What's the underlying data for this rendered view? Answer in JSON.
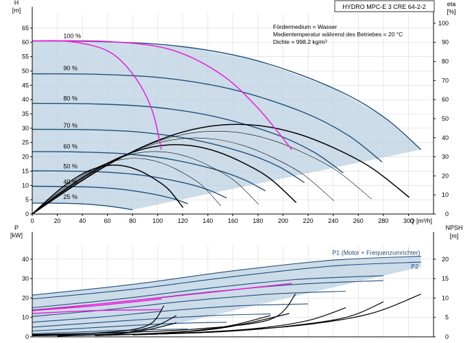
{
  "chart_data": [
    {
      "type": "line",
      "title": "HYDRO MPC-E 3 CRE 64-2-2",
      "ylabel_left": "H",
      "ylabel_left_unit": "[m]",
      "ylabel_right": "eta",
      "ylabel_right_unit": "[%]",
      "xlabel": "Q [m³/h]",
      "xlim": [
        0,
        320
      ],
      "ylim_left": [
        0,
        70
      ],
      "ylim_right": [
        0,
        105
      ],
      "x_ticks": [
        0,
        20,
        40,
        60,
        80,
        100,
        120,
        140,
        160,
        180,
        200,
        220,
        240,
        260,
        280,
        300
      ],
      "y_ticks_left": [
        0,
        5,
        10,
        15,
        20,
        25,
        30,
        35,
        40,
        45,
        50,
        55,
        60,
        65
      ],
      "y_ticks_right": [
        0,
        10,
        20,
        30,
        40,
        50,
        60,
        70,
        80,
        90,
        100
      ],
      "grid": true,
      "annotations": [
        "Fördermedium = Wasser",
        "Medientemperatur während des Betriebes = 20 °C",
        "Dichte = 998.2 kg/m³"
      ],
      "speed_curves": [
        {
          "name": "100 %",
          "label_at": [
            15,
            60.8
          ],
          "x": [
            0,
            60,
            120,
            180,
            240,
            280,
            310
          ],
          "y": [
            60.5,
            60.2,
            58.5,
            53.5,
            44.0,
            34.0,
            22.5
          ]
        },
        {
          "name": "90 %",
          "label_at": [
            15,
            49.5
          ],
          "x": [
            0,
            54,
            108,
            162,
            216,
            252,
            279
          ],
          "y": [
            49.0,
            48.8,
            47.4,
            43.3,
            35.6,
            27.5,
            18.2
          ]
        },
        {
          "name": "80 %",
          "label_at": [
            15,
            39
          ],
          "x": [
            0,
            48,
            96,
            144,
            192,
            224,
            248
          ],
          "y": [
            38.7,
            38.5,
            37.4,
            34.2,
            28.2,
            21.8,
            14.4
          ]
        },
        {
          "name": "70 %",
          "label_at": [
            15,
            29.5
          ],
          "x": [
            0,
            42,
            84,
            126,
            168,
            196,
            217
          ],
          "y": [
            29.6,
            29.5,
            28.7,
            26.2,
            21.6,
            16.7,
            11.0
          ]
        },
        {
          "name": "60 %",
          "label_at": [
            15,
            22.2
          ],
          "x": [
            0,
            36,
            72,
            108,
            144,
            168,
            186
          ],
          "y": [
            21.8,
            21.7,
            21.1,
            19.3,
            15.8,
            12.2,
            8.1
          ]
        },
        {
          "name": "50 %",
          "label_at": [
            15,
            15.2
          ],
          "x": [
            0,
            30,
            60,
            90,
            120,
            140,
            155
          ],
          "y": [
            15.1,
            15.0,
            14.6,
            13.4,
            11.0,
            8.5,
            5.6
          ]
        },
        {
          "name": "40 %",
          "label_at": [
            15,
            9.8
          ],
          "x": [
            0,
            24,
            48,
            72,
            96,
            112,
            124
          ],
          "y": [
            9.7,
            9.6,
            9.4,
            8.6,
            7.0,
            5.4,
            3.6
          ]
        },
        {
          "name": "25 %",
          "label_at": [
            15,
            4.5
          ],
          "x": [
            0,
            15,
            30,
            45,
            60,
            70,
            80
          ],
          "y": [
            3.8,
            3.8,
            3.7,
            3.4,
            2.8,
            2.2,
            1.5
          ]
        }
      ],
      "best_curve_1pump": {
        "x": [
          0,
          30,
          60,
          80,
          95,
          103
        ],
        "y": [
          60.5,
          60.3,
          57.0,
          49.0,
          37.0,
          22.5
        ]
      },
      "best_curve_2pump": {
        "x": [
          0,
          60,
          110,
          150,
          180,
          207
        ],
        "y": [
          60.5,
          60.3,
          57.5,
          49.0,
          37.0,
          22.5
        ]
      }
    },
    {
      "type": "line",
      "ylabel_left": "P",
      "ylabel_left_unit": "[kW]",
      "ylabel_right": "NPSH",
      "ylabel_right_unit": "[m]",
      "xlim": [
        0,
        320
      ],
      "ylim_left": [
        0,
        47
      ],
      "ylim_right": [
        0,
        23.5
      ],
      "y_ticks_left": [
        0,
        10,
        20,
        30,
        40
      ],
      "y_ticks_right": [
        0,
        5,
        10,
        15,
        20
      ],
      "grid": true,
      "series_labels": [
        {
          "name": "P1 (Motor + Frequenzumrichter)",
          "at": [
            220,
            41.5
          ]
        },
        {
          "name": "P2",
          "at": [
            302,
            34.5
          ]
        }
      ],
      "power_curves": [
        {
          "x": [
            0,
            80,
            160,
            240,
            310
          ],
          "y": [
            21.5,
            27.0,
            34.0,
            39.5,
            41.5
          ]
        },
        {
          "x": [
            0,
            80,
            160,
            240,
            310
          ],
          "y": [
            19.5,
            24.5,
            31.0,
            36.5,
            38.5
          ]
        },
        {
          "x": [
            0,
            70,
            140,
            210,
            280
          ],
          "y": [
            15.0,
            19.5,
            25.0,
            29.5,
            31.5
          ]
        },
        {
          "x": [
            0,
            70,
            140,
            210,
            280
          ],
          "y": [
            13.8,
            18.0,
            23.0,
            27.0,
            29.0
          ]
        },
        {
          "x": [
            0,
            60,
            125,
            190,
            250
          ],
          "y": [
            10.5,
            14.0,
            18.5,
            22.0,
            23.5
          ]
        },
        {
          "x": [
            0,
            55,
            110,
            165,
            220
          ],
          "y": [
            7.5,
            10.2,
            13.5,
            16.0,
            17.0
          ]
        },
        {
          "x": [
            0,
            45,
            95,
            145,
            190
          ],
          "y": [
            5.0,
            7.0,
            9.2,
            11.0,
            11.8
          ]
        },
        {
          "x": [
            0,
            38,
            78,
            118,
            155
          ],
          "y": [
            3.0,
            4.3,
            5.8,
            7.0,
            7.5
          ]
        },
        {
          "x": [
            0,
            30,
            62,
            95,
            124
          ],
          "y": [
            1.6,
            2.3,
            3.1,
            3.7,
            4.0
          ]
        },
        {
          "x": [
            0,
            20,
            40,
            60,
            80
          ],
          "y": [
            0.6,
            0.8,
            1.1,
            1.3,
            1.4
          ]
        }
      ],
      "power_magenta": [
        {
          "x": [
            0,
            50,
            103
          ],
          "y": [
            13.5,
            16.0,
            19.5
          ]
        },
        {
          "x": [
            0,
            100,
            207
          ],
          "y": [
            13.5,
            20.0,
            27.5
          ]
        },
        {
          "x": [
            0,
            50,
            103
          ],
          "y": [
            12.0,
            13.5,
            14.0
          ]
        }
      ],
      "npsh_curves": [
        {
          "x": [
            100,
            160,
            220,
            270,
            310
          ],
          "y": [
            0.8,
            1.6,
            3.2,
            6.0,
            11.0
          ]
        },
        {
          "x": [
            90,
            150,
            200,
            250,
            280
          ],
          "y": [
            0.6,
            1.3,
            2.6,
            5.0,
            9.0
          ]
        },
        {
          "x": [
            80,
            130,
            180,
            220,
            250
          ],
          "y": [
            0.5,
            1.1,
            2.2,
            4.2,
            7.5
          ]
        },
        {
          "x": [
            60,
            100,
            140,
            170,
            205
          ],
          "y": [
            0.4,
            0.9,
            1.8,
            3.4,
            6.0
          ]
        },
        {
          "x": [
            50,
            90,
            130,
            160,
            190
          ],
          "y": [
            0.3,
            0.8,
            1.6,
            3.0,
            5.5
          ]
        },
        {
          "x": [
            20,
            50,
            75,
            95,
            115
          ],
          "y": [
            0.2,
            0.5,
            1.0,
            2.0,
            3.6
          ]
        }
      ],
      "npsh_bold": [
        {
          "x": [
            0,
            60,
            130,
            190,
            210
          ],
          "y": [
            0.6,
            1.0,
            2.0,
            4.5,
            11.0
          ]
        },
        {
          "x": [
            0,
            40,
            75,
            95,
            105
          ],
          "y": [
            0.4,
            0.8,
            1.6,
            3.5,
            8.0
          ]
        },
        {
          "x": [
            0,
            60,
            80,
            100,
            115
          ],
          "y": [
            0.3,
            0.6,
            1.4,
            3.0,
            5.5
          ]
        }
      ]
    }
  ]
}
